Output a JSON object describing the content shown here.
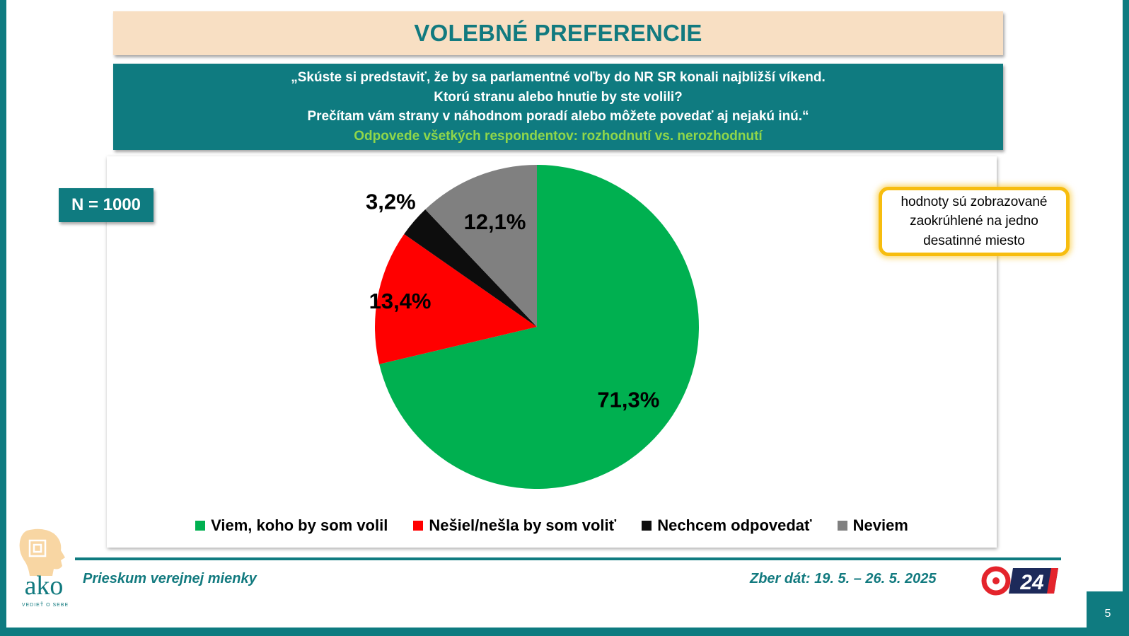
{
  "header": {
    "title": "VOLEBNÉ PREFERENCIE",
    "question_lines": [
      "„Skúste si predstaviť, že by sa parlamentné voľby do NR SR konali najbližší víkend.",
      "Ktorú stranu alebo hnutie by ste volili?",
      "Prečítam vám strany v náhodnom poradí alebo môžete povedať aj nejakú inú.“"
    ],
    "subtitle": "Odpovede všetkých respondentov: rozhodnutí vs. nerozhodnutí"
  },
  "badge": {
    "sample_size": "N = 1000"
  },
  "note": {
    "text": "hodnoty sú zobrazované zaokrúhlené na jedno desatinné miesto"
  },
  "chart_data": {
    "type": "pie",
    "title": "VOLEBNÉ PREFERENCIE",
    "start_angle_deg": 0,
    "direction": "clockwise",
    "slices": [
      {
        "label": "Viem, koho by som volil",
        "value": 71.3,
        "display": "71,3%",
        "color": "#00b050"
      },
      {
        "label": "Nešiel/nešla by som voliť",
        "value": 13.4,
        "display": "13,4%",
        "color": "#ff0000"
      },
      {
        "label": "Nechcem odpovedať",
        "value": 3.2,
        "display": "3,2%",
        "color": "#0d0d0d"
      },
      {
        "label": "Neviem",
        "value": 12.1,
        "display": "12,1%",
        "color": "#808080"
      }
    ],
    "legend_position": "bottom"
  },
  "footer": {
    "left": "Prieskum verejnej mienky",
    "right": "Zber dát: 19. 5. – 26. 5. 2025",
    "page_number": "5",
    "ako_tagline": "VEDIEŤ O SEBE",
    "ako_logo_text": "ako",
    "tv_logo_text": "24"
  }
}
